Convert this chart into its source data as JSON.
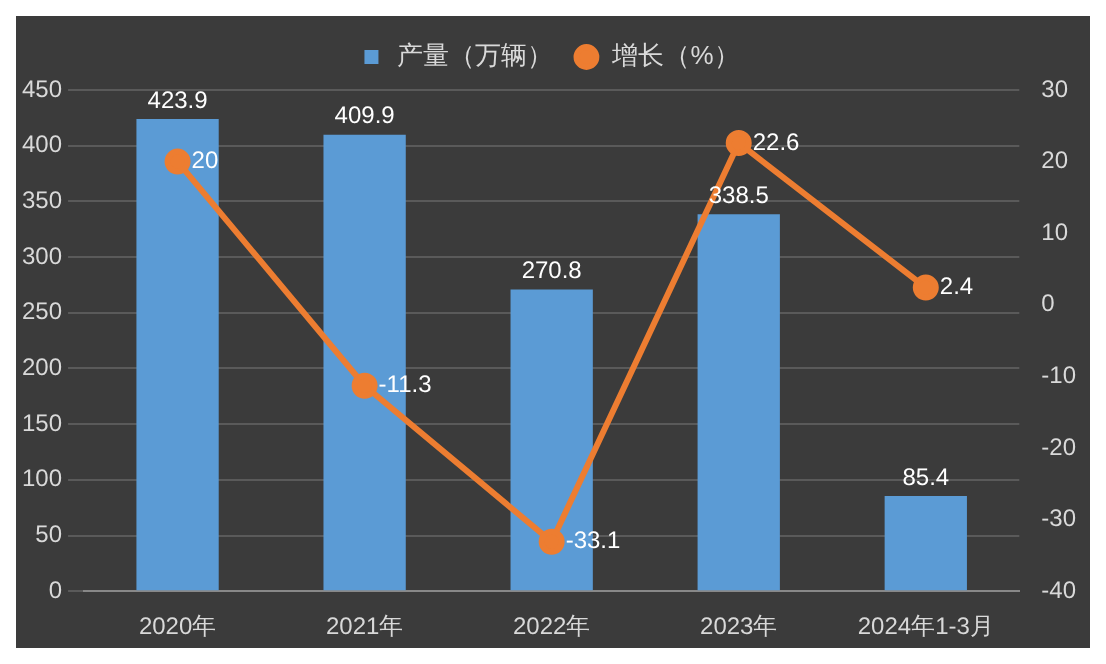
{
  "chart_data": {
    "type": "bar",
    "categories": [
      "2020年",
      "2021年",
      "2022年",
      "2023年",
      "2024年1-3月"
    ],
    "series": [
      {
        "name": "产量（万辆）",
        "color": "#5b9bd5",
        "values": [
          423.9,
          409.9,
          270.8,
          338.5,
          85.4
        ]
      },
      {
        "name": "增长（%）",
        "type": "line",
        "axis": "y2",
        "color": "#ed7d31",
        "values": [
          20,
          -11.3,
          -33.1,
          22.6,
          2.4
        ]
      }
    ],
    "ylim": [
      0,
      450
    ],
    "yticks": [
      0,
      50,
      100,
      150,
      200,
      250,
      300,
      350,
      400,
      450
    ],
    "y2lim": [
      -40,
      30
    ],
    "y2ticks": [
      -40,
      -30,
      -20,
      -10,
      0,
      10,
      20,
      30
    ],
    "grid": "y",
    "legend": "top",
    "marker": "circle",
    "data_labels": true
  }
}
